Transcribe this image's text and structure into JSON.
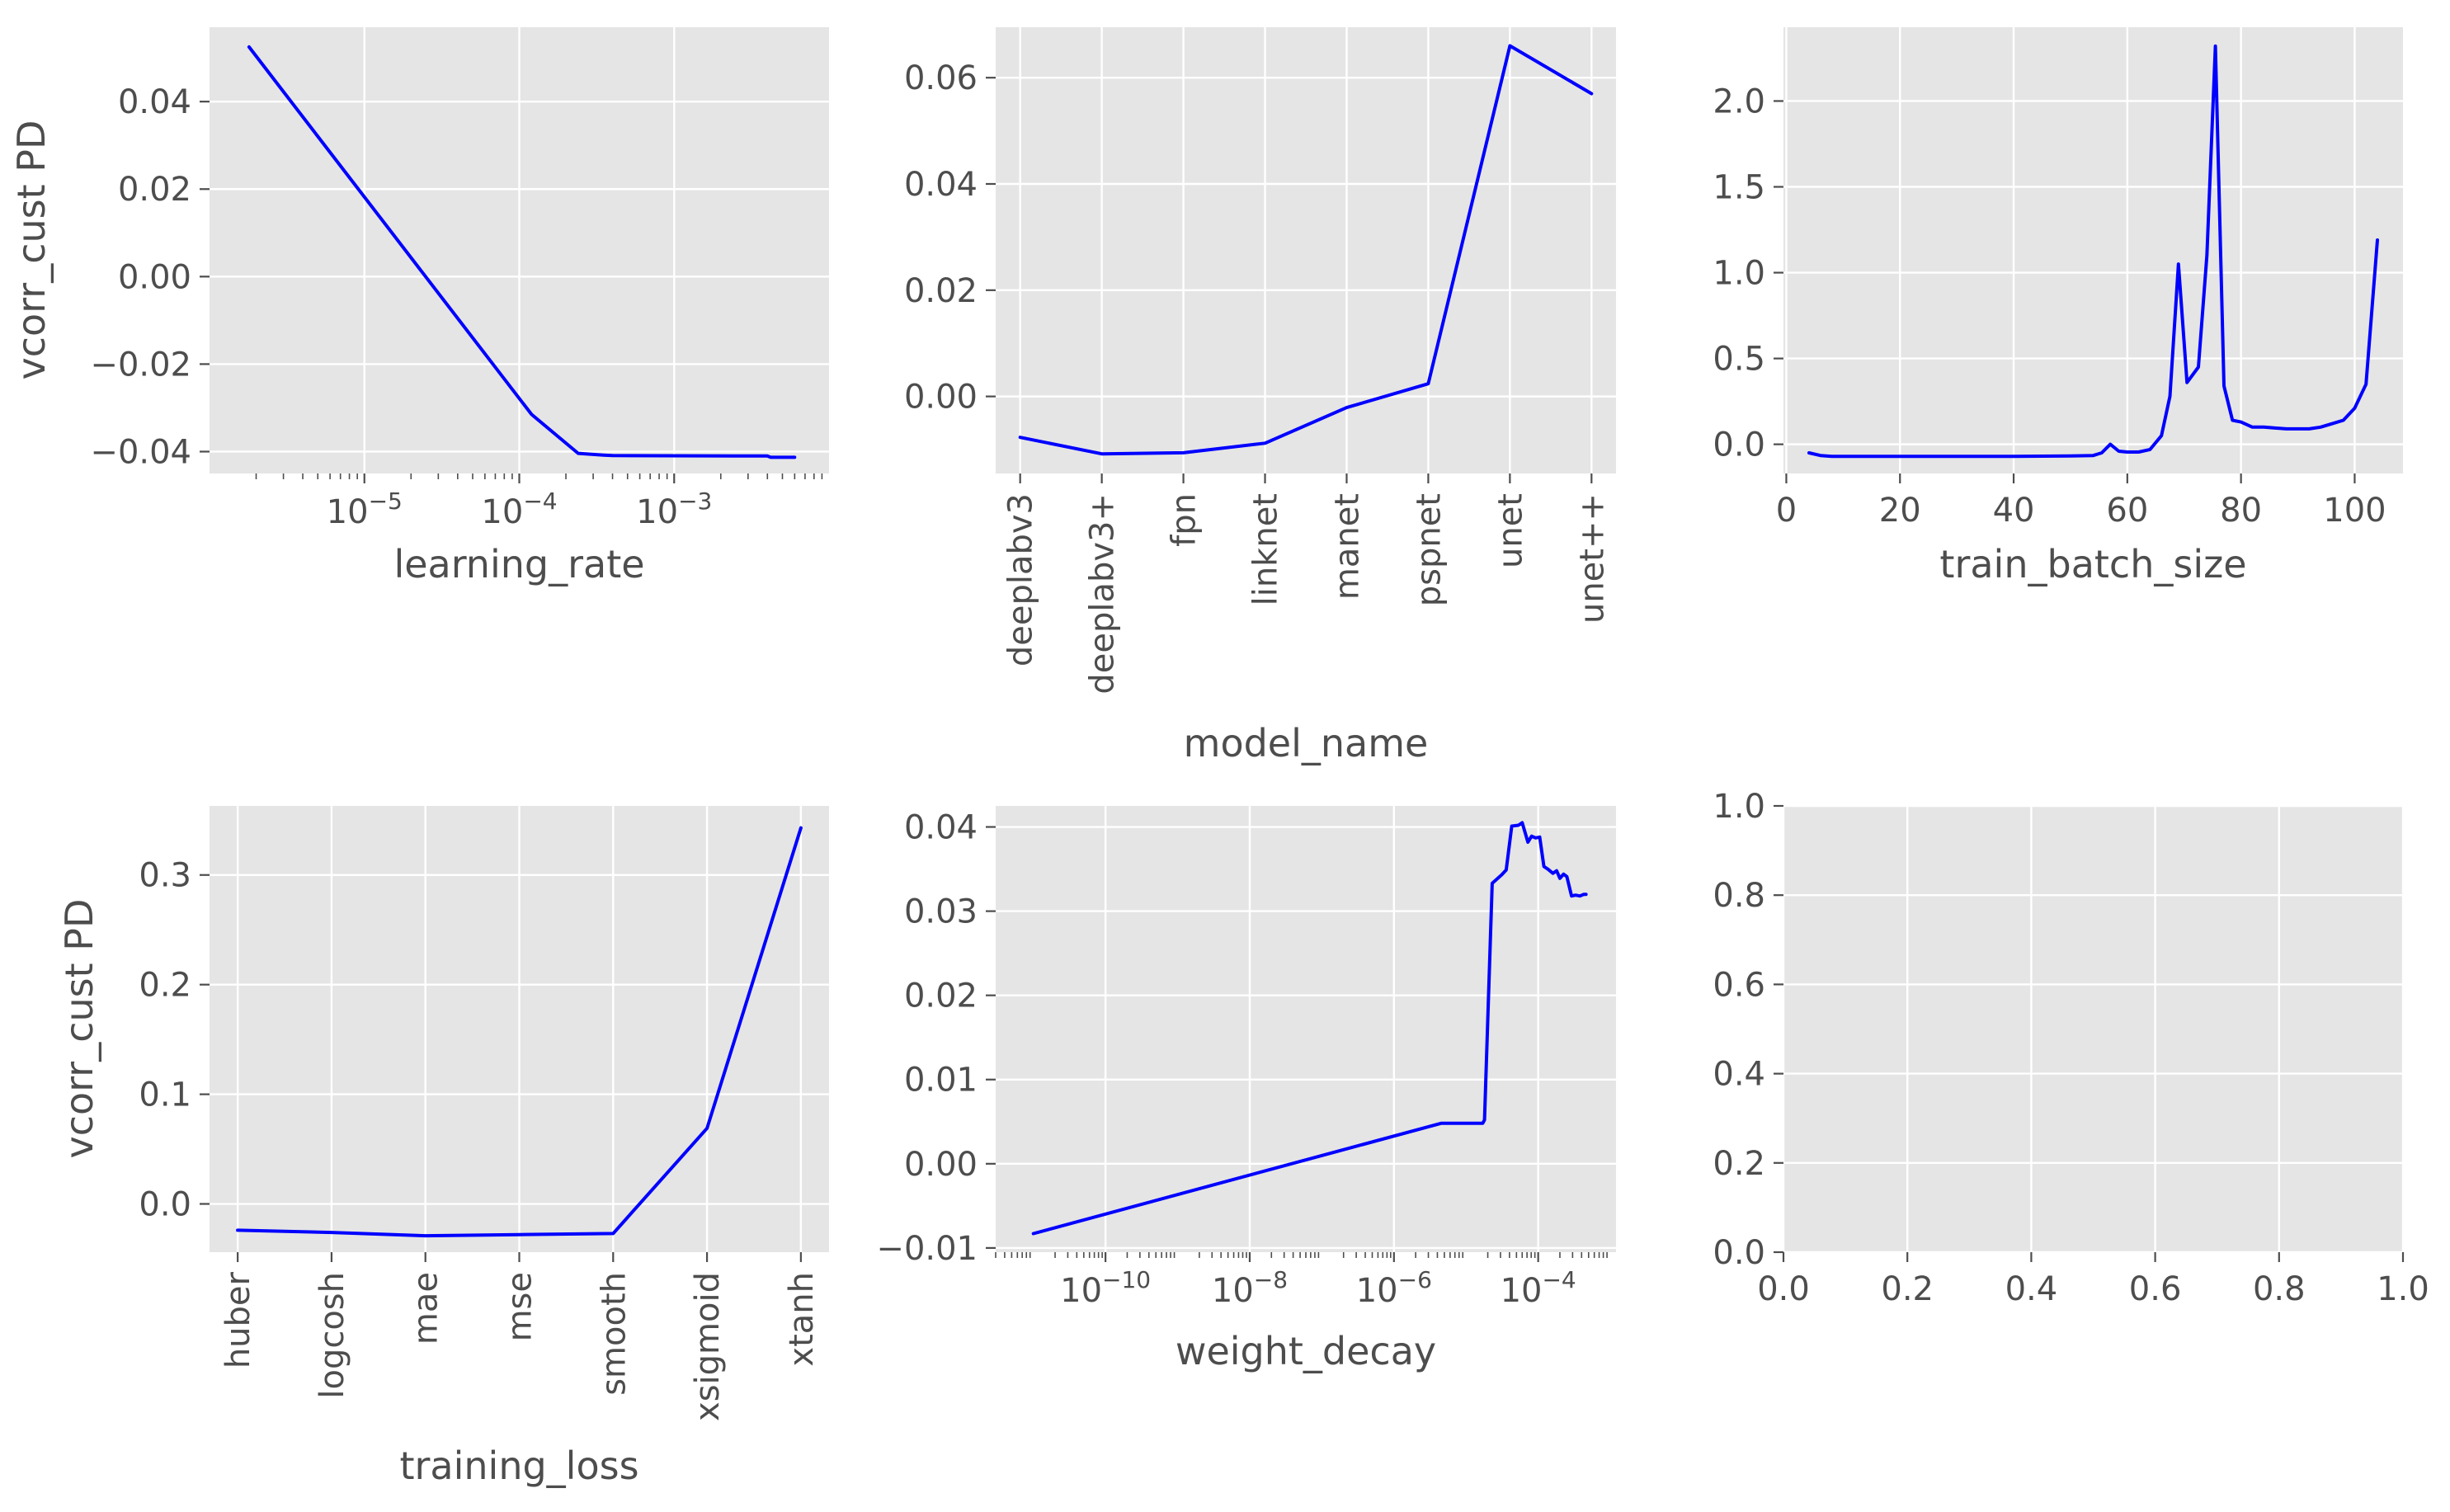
{
  "figure": {
    "colors": {
      "panel_bg": "#e5e5e5",
      "grid": "#ffffff",
      "line": "#0000ff",
      "text": "#4d4d4d",
      "tick": "#4d4d4d"
    }
  },
  "chart_data": [
    {
      "id": "lr",
      "type": "line",
      "xlabel": "learning_rate",
      "ylabel": "vcorr_cust PD",
      "xscale": "log",
      "xlim": [
        1e-06,
        0.01
      ],
      "ylim": [
        -0.045,
        0.057
      ],
      "x_ticks": [
        1e-05,
        0.0001,
        0.001
      ],
      "x_tick_labels": [
        "10^-5",
        "10^-4",
        "10^-3"
      ],
      "y_ticks": [
        0.04,
        0.02,
        0.0,
        -0.02,
        -0.04
      ],
      "y_tick_labels": [
        "0.04",
        "0.02",
        "0.00",
        "−0.02",
        "−0.04"
      ],
      "series": [
        {
          "x": [
            1.8e-06,
            0.00012,
            0.00024,
            0.00035,
            0.0004,
            0.004,
            0.0042,
            0.006
          ],
          "y": [
            0.0525,
            -0.0315,
            -0.0404,
            -0.0408,
            -0.0409,
            -0.041,
            -0.0413,
            -0.0413
          ]
        }
      ]
    },
    {
      "id": "model",
      "type": "line",
      "xlabel": "model_name",
      "categories": [
        "deeplabv3",
        "deeplabv3+",
        "fpn",
        "linknet",
        "manet",
        "pspnet",
        "unet",
        "unet++"
      ],
      "xlim": [
        -0.3,
        7.3
      ],
      "ylim": [
        -0.0145,
        0.0695
      ],
      "y_ticks": [
        0.06,
        0.04,
        0.02,
        0.0
      ],
      "y_tick_labels": [
        "0.06",
        "0.04",
        "0.02",
        "0.00"
      ],
      "series": [
        {
          "values": [
            -0.0077,
            -0.0108,
            -0.0106,
            -0.0088,
            -0.0021,
            0.0024,
            0.066,
            0.057
          ]
        }
      ]
    },
    {
      "id": "batch",
      "type": "line",
      "xlabel": "train_batch_size",
      "xlim": [
        -0.5,
        108.5
      ],
      "ylim": [
        -0.17,
        2.43
      ],
      "x_ticks": [
        0,
        20,
        40,
        60,
        80,
        100
      ],
      "x_tick_labels": [
        "0",
        "20",
        "40",
        "60",
        "80",
        "100"
      ],
      "y_ticks": [
        2.0,
        1.5,
        1.0,
        0.5,
        0.0
      ],
      "y_tick_labels": [
        "2.0",
        "1.5",
        "1.0",
        "0.5",
        "0.0"
      ],
      "series": [
        {
          "x": [
            4,
            6,
            8,
            10,
            20,
            30,
            40,
            50,
            54,
            55.5,
            57,
            58.5,
            60,
            62,
            64,
            66,
            67.5,
            69,
            70.5,
            72.5,
            74,
            75.5,
            77,
            78.5,
            80,
            82,
            84,
            86,
            88,
            90,
            92,
            94,
            96,
            98,
            100,
            102,
            104
          ],
          "y": [
            -0.05,
            -0.065,
            -0.07,
            -0.07,
            -0.07,
            -0.07,
            -0.07,
            -0.068,
            -0.065,
            -0.05,
            0.0,
            -0.04,
            -0.045,
            -0.045,
            -0.03,
            0.05,
            0.28,
            1.05,
            0.36,
            0.45,
            1.1,
            2.32,
            0.34,
            0.14,
            0.13,
            0.1,
            0.1,
            0.095,
            0.09,
            0.09,
            0.09,
            0.1,
            0.12,
            0.14,
            0.21,
            0.35,
            1.19
          ]
        }
      ]
    },
    {
      "id": "loss",
      "type": "line",
      "xlabel": "training_loss",
      "ylabel": "vcorr_cust PD",
      "categories": [
        "huber",
        "logcosh",
        "mae",
        "mse",
        "smooth",
        "xsigmoid",
        "xtanh"
      ],
      "xlim": [
        -0.3,
        6.3
      ],
      "ylim": [
        -0.044,
        0.363
      ],
      "y_ticks": [
        0.3,
        0.2,
        0.1,
        0.0
      ],
      "y_tick_labels": [
        "0.3",
        "0.2",
        "0.1",
        "0.0"
      ],
      "series": [
        {
          "values": [
            -0.024,
            -0.026,
            -0.029,
            -0.028,
            -0.027,
            0.069,
            0.343
          ]
        }
      ]
    },
    {
      "id": "wd",
      "type": "line",
      "xlabel": "weight_decay",
      "xscale": "log",
      "xlim": [
        3e-12,
        0.0012
      ],
      "ylim": [
        -0.0105,
        0.0425
      ],
      "x_ticks": [
        1e-10,
        1e-08,
        1e-06,
        0.0001
      ],
      "x_tick_labels": [
        "10^-10",
        "10^-8",
        "10^-6",
        "10^-4"
      ],
      "y_ticks": [
        0.04,
        0.03,
        0.02,
        0.01,
        0.0,
        -0.01
      ],
      "y_tick_labels": [
        "0.04",
        "0.03",
        "0.02",
        "0.01",
        "0.00",
        "−0.01"
      ],
      "series": [
        {
          "x": [
            1e-11,
            4.5e-06,
            1.7e-05,
            1.8e-05,
            2.3e-05,
            3.1e-05,
            3.6e-05,
            4.3e-05,
            5.3e-05,
            6e-05,
            7.2e-05,
            8.1e-05,
            9.2e-05,
            0.000105,
            0.00012,
            0.000136,
            0.00016,
            0.00018,
            0.0002,
            0.000225,
            0.00025,
            0.00029,
            0.00033,
            0.00038,
            0.00043,
            0.00046
          ],
          "y": [
            -0.0083,
            0.0048,
            0.0048,
            0.0052,
            0.0333,
            0.0343,
            0.0349,
            0.0401,
            0.0402,
            0.0405,
            0.0382,
            0.0389,
            0.0387,
            0.0388,
            0.0353,
            0.035,
            0.0345,
            0.0348,
            0.0339,
            0.0344,
            0.0341,
            0.0318,
            0.0319,
            0.0318,
            0.032,
            0.032
          ]
        }
      ]
    },
    {
      "id": "empty",
      "type": "line",
      "xlim": [
        0,
        1
      ],
      "ylim": [
        0,
        1
      ],
      "x_ticks": [
        0,
        0.2,
        0.4,
        0.6,
        0.8,
        1.0
      ],
      "x_tick_labels": [
        "0.0",
        "0.2",
        "0.4",
        "0.6",
        "0.8",
        "1.0"
      ],
      "y_ticks": [
        1.0,
        0.8,
        0.6,
        0.4,
        0.2,
        0.0
      ],
      "y_tick_labels": [
        "1.0",
        "0.8",
        "0.6",
        "0.4",
        "0.2",
        "0.0"
      ],
      "series": []
    }
  ]
}
